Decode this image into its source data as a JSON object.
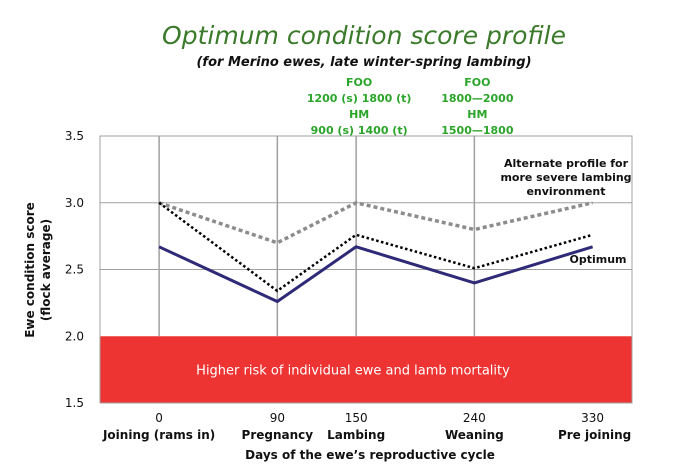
{
  "chart_data": {
    "type": "line",
    "title": "Optimum condition score profile",
    "subtitle": "(for Merino ewes, late winter-spring lambing)",
    "xlabel": "Days of the ewe’s reproductive cycle",
    "ylabel_line1": "Ewe condition score",
    "ylabel_line2": "(flock average)",
    "xlim": [
      -45,
      360
    ],
    "ylim": [
      1.5,
      3.5
    ],
    "yticks": [
      "1.5",
      "2.0",
      "2.5",
      "3.0",
      "3.5"
    ],
    "ytick_values": [
      1.5,
      2.0,
      2.5,
      3.0,
      3.5
    ],
    "xticks": [
      {
        "x": 0,
        "label": "0",
        "sublabel": "Joining (rams in)"
      },
      {
        "x": 90,
        "label": "90",
        "sublabel": "Pregnancy"
      },
      {
        "x": 150,
        "label": "150",
        "sublabel": "Lambing"
      },
      {
        "x": 240,
        "label": "240",
        "sublabel": "Weaning"
      },
      {
        "x": 330,
        "label": "330",
        "sublabel": "Pre joining"
      }
    ],
    "grid": true,
    "series": [
      {
        "name": "Optimum",
        "style": "solid",
        "color": "#2e2a78",
        "x": [
          0,
          90,
          150,
          240,
          330
        ],
        "y": [
          2.67,
          2.26,
          2.67,
          2.4,
          2.67
        ]
      },
      {
        "name": "Alternate profile for more severe lambing environment",
        "style": "dashed",
        "color": "#8c8c8c",
        "x": [
          0,
          90,
          150,
          240,
          330
        ],
        "y": [
          3.0,
          2.7,
          3.0,
          2.8,
          3.0
        ]
      },
      {
        "name": "",
        "style": "dotted",
        "color": "#000000",
        "x": [
          0,
          90,
          150,
          240,
          330
        ],
        "y": [
          3.0,
          2.34,
          2.76,
          2.51,
          2.76
        ]
      }
    ],
    "risk_zone": {
      "y_from": 1.5,
      "y_to": 2.0,
      "color": "#ee3333",
      "label": "Higher risk of individual ewe and lamb mortality"
    },
    "annotations": {
      "lambing_foo": [
        "FOO",
        "1200 (s) 1800 (t)",
        "HM",
        "900 (s) 1400 (t)"
      ],
      "weaning_foo": [
        "FOO",
        "1800—2000",
        "HM",
        "1500—1800"
      ],
      "alternate_label": [
        "Alternate profile for",
        "more severe lambing",
        "environment"
      ],
      "optimum_label": "Optimum"
    },
    "colors": {
      "title": "#3a7a2a",
      "annotation_green": "#2aa52a",
      "grid": "#a0a0a0"
    }
  }
}
